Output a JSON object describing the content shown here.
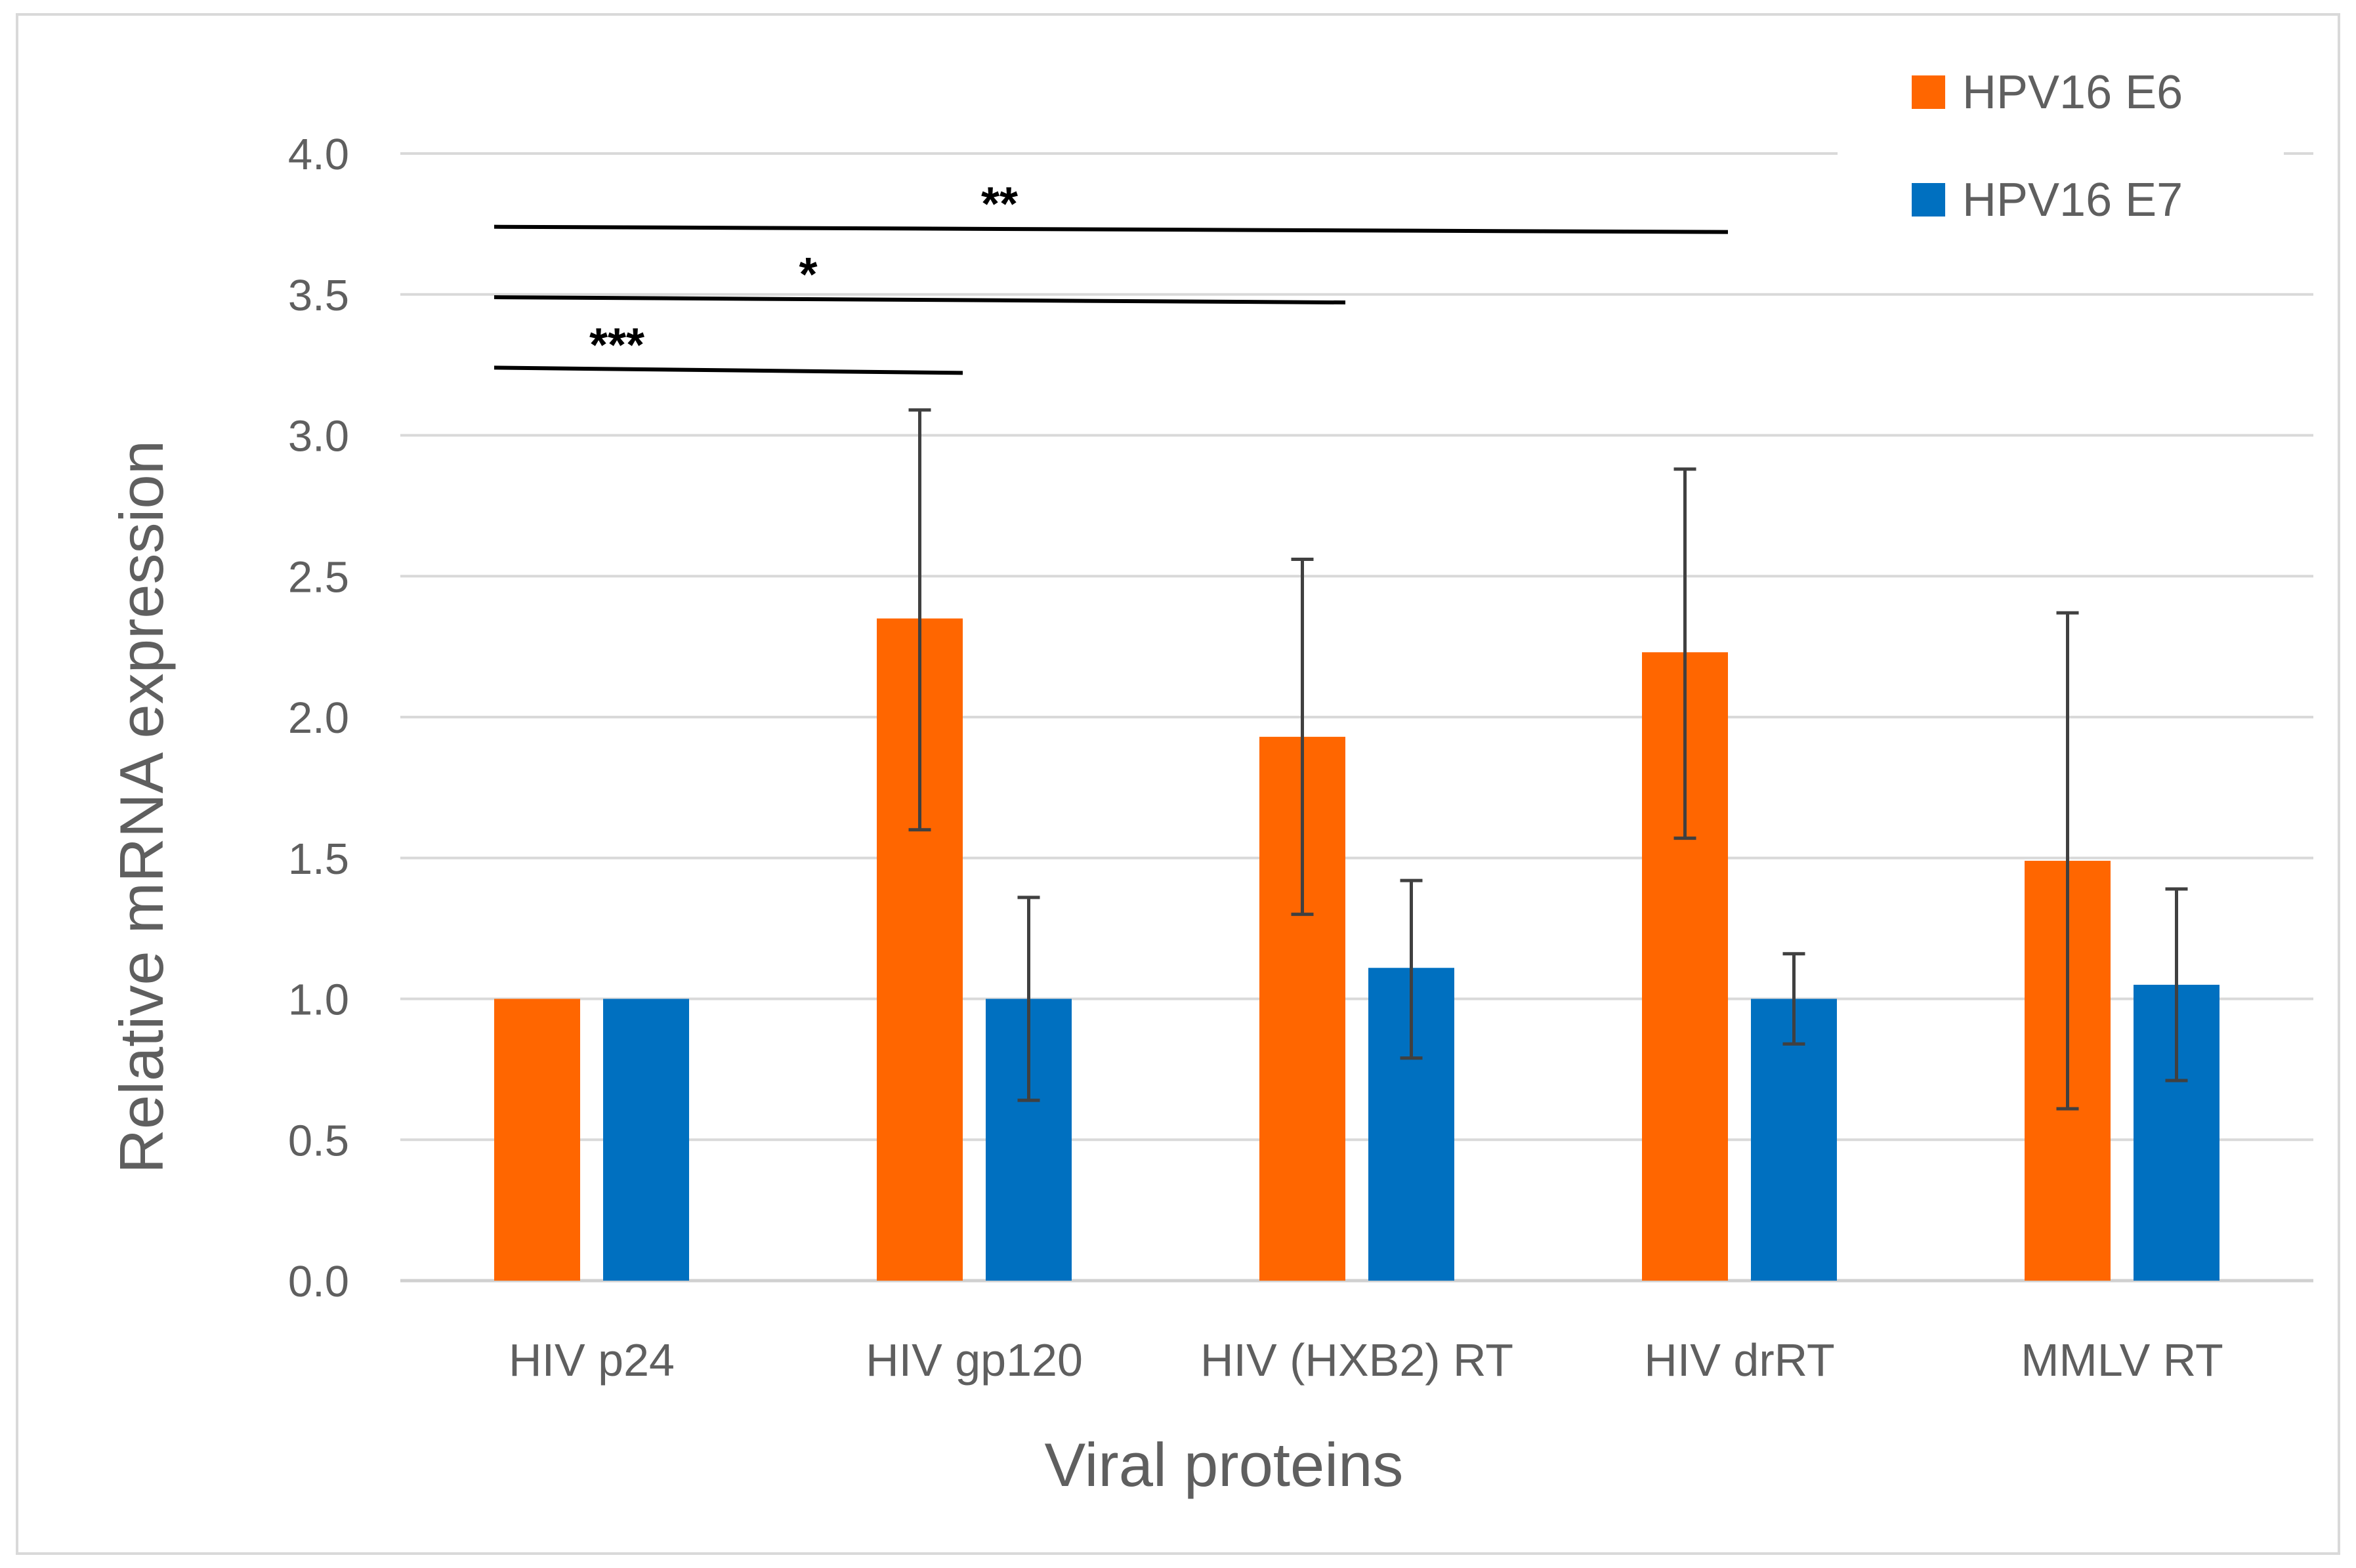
{
  "chart_data": {
    "type": "bar",
    "xlabel": "Viral proteins",
    "ylabel": "Relative mRNA  expression",
    "ylim": [
      0,
      4.0
    ],
    "yticks": [
      0.0,
      0.5,
      1.0,
      1.5,
      2.0,
      2.5,
      3.0,
      3.5,
      4.0
    ],
    "ytick_labels": [
      "0.0",
      "0.5",
      "1.0",
      "1.5",
      "2.0",
      "2.5",
      "3.0",
      "3.5",
      "4.0"
    ],
    "grid": true,
    "legend_position": "top-right",
    "categories": [
      "HIV p24",
      "HIV gp120",
      "HIV (HXB2) RT",
      "HIV drRT",
      "MMLV RT"
    ],
    "series": [
      {
        "name": "HPV16 E6",
        "color": "#ff6600",
        "values": [
          1.0,
          2.35,
          1.93,
          2.23,
          1.49
        ],
        "error_low": [
          null,
          1.6,
          1.3,
          1.57,
          0.61
        ],
        "error_high": [
          null,
          3.09,
          2.56,
          2.88,
          2.37
        ]
      },
      {
        "name": "HPV16 E7",
        "color": "#0070c0",
        "values": [
          1.0,
          1.0,
          1.11,
          1.0,
          1.05
        ],
        "error_low": [
          null,
          0.64,
          0.79,
          0.84,
          0.71
        ],
        "error_high": [
          null,
          1.36,
          1.42,
          1.16,
          1.39
        ]
      }
    ],
    "significance": [
      {
        "label": "***",
        "from_category": 0,
        "to_category": 1,
        "y": 3.24
      },
      {
        "label": "*",
        "from_category": 0,
        "to_category": 2,
        "y": 3.49
      },
      {
        "label": "**",
        "from_category": 0,
        "to_category": 3,
        "y": 3.74
      }
    ],
    "colors": {
      "grid": "#d9d9d9",
      "text": "#5f5f5f",
      "error_bar": "#404040",
      "frame": "#d9d9d9"
    }
  }
}
